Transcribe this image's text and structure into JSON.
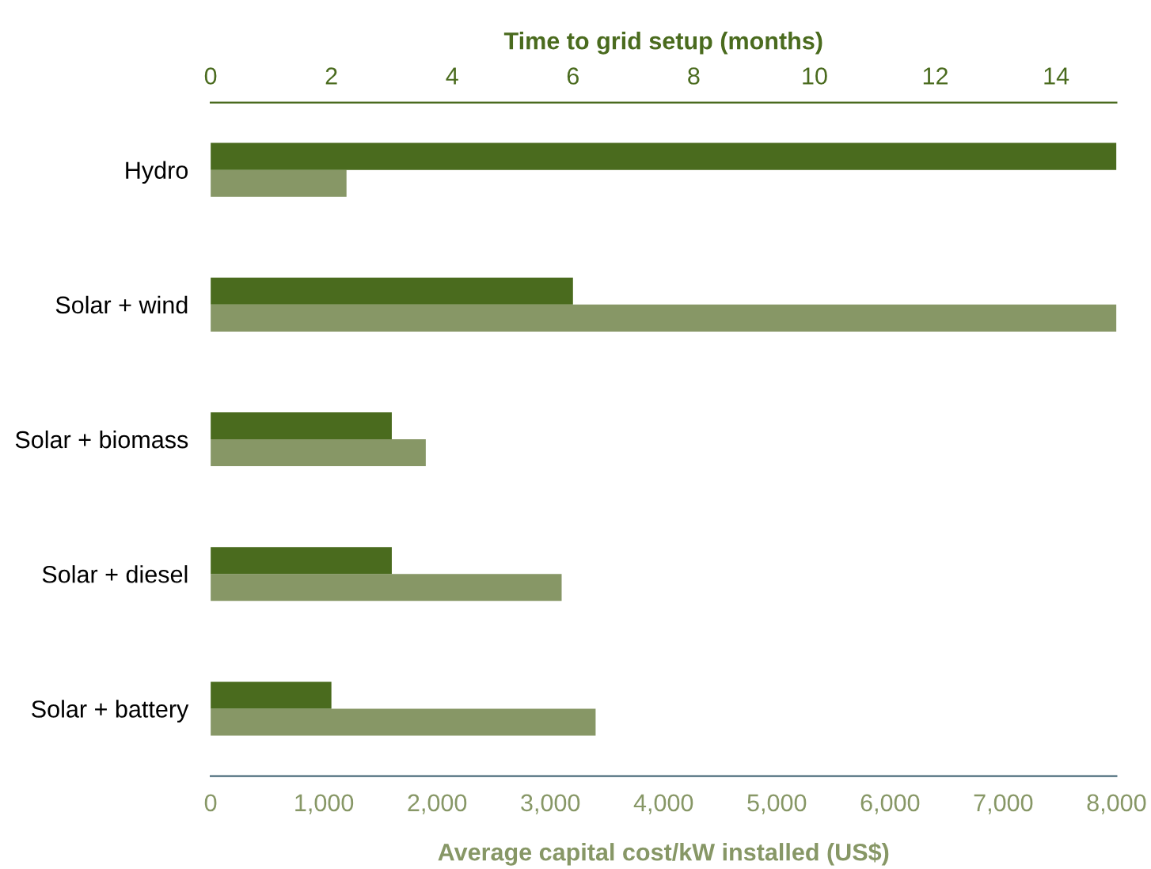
{
  "chart_data": {
    "type": "bar",
    "orientation": "horizontal",
    "xlabel": "Average capital cost/kW installed (US$)",
    "x2label": "Time to grid setup (months)",
    "categories": [
      "Hydro",
      "Solar + wind",
      "Solar + biomass",
      "Solar + diesel",
      "Solar + battery"
    ],
    "series": [
      {
        "color": "#4a6b1e",
        "axis": "x2",
        "values": [
          15,
          6,
          3,
          3,
          2
        ]
      },
      {
        "color": "#879766",
        "values": [
          1200,
          8000,
          1900,
          3100,
          3400
        ]
      }
    ],
    "xlim": [
      0,
      8000
    ],
    "xticks": [
      0,
      {
        "value": 1000,
        "label": "1,000"
      },
      {
        "value": 2000,
        "label": "2,000"
      },
      {
        "value": 3000,
        "label": "3,000"
      },
      {
        "value": 4000,
        "label": "4,000"
      },
      {
        "value": 5000,
        "label": "5,000"
      },
      {
        "value": 6000,
        "label": "6,000"
      },
      {
        "value": 7000,
        "label": "7,000"
      },
      {
        "value": 8000,
        "label": "8,000"
      }
    ],
    "x2lim": [
      0,
      15
    ],
    "x2ticks": [
      0,
      2,
      4,
      6,
      8,
      10,
      12,
      14
    ],
    "grid": false,
    "legend": false
  }
}
